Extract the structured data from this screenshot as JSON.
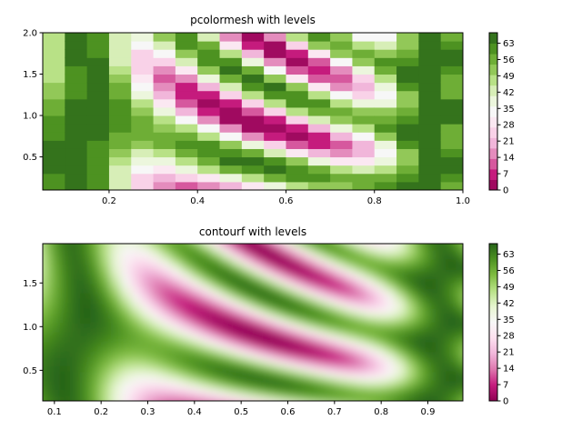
{
  "chart_data": [
    {
      "type": "heatmap",
      "title": "pcolormesh with levels",
      "xlabel": "",
      "ylabel": "",
      "xlim": [
        0.05,
        1.0
      ],
      "ylim": [
        0.1,
        2.0
      ],
      "x_ticks": [
        "0.2",
        "0.4",
        "0.6",
        "0.8",
        "1.0"
      ],
      "x_tick_values": [
        0.2,
        0.4,
        0.6,
        0.8,
        1.0
      ],
      "y_ticks": [
        "0.5",
        "1.0",
        "1.5",
        "2.0"
      ],
      "y_tick_values": [
        0.5,
        1.0,
        1.5,
        2.0
      ],
      "grid": false,
      "colormap": "PiYG",
      "colorbar": {
        "ticks": [
          "0",
          "7",
          "14",
          "21",
          "28",
          "35",
          "42",
          "49",
          "56",
          "63"
        ],
        "tick_values": [
          0,
          7,
          14,
          21,
          28,
          35,
          42,
          49,
          56,
          63
        ],
        "range": [
          0,
          67.5
        ],
        "levels": [
          0,
          4.5,
          9,
          13.5,
          18,
          22.5,
          27,
          31.5,
          36,
          40.5,
          45,
          49.5,
          54,
          58.5,
          63,
          67.5
        ]
      },
      "x_edges": [
        0.05,
        0.1,
        0.15,
        0.2,
        0.25,
        0.3,
        0.35,
        0.4,
        0.45,
        0.5,
        0.55,
        0.6,
        0.65,
        0.7,
        0.75,
        0.8,
        0.85,
        0.9,
        0.95,
        1.0
      ],
      "y_edges": [
        0.1,
        0.2,
        0.3,
        0.4,
        0.5,
        0.6,
        0.7,
        0.8,
        0.9,
        1.0,
        1.1,
        1.2,
        1.3,
        1.4,
        1.5,
        1.6,
        1.7,
        1.8,
        1.9,
        2.0
      ]
    },
    {
      "type": "heatmap",
      "title": "contourf with levels",
      "xlabel": "",
      "ylabel": "",
      "xlim": [
        0.075,
        0.975
      ],
      "ylim": [
        0.15,
        1.95
      ],
      "x_ticks": [
        "0.1",
        "0.2",
        "0.3",
        "0.4",
        "0.5",
        "0.6",
        "0.7",
        "0.8",
        "0.9"
      ],
      "x_tick_values": [
        0.1,
        0.2,
        0.3,
        0.4,
        0.5,
        0.6,
        0.7,
        0.8,
        0.9
      ],
      "y_ticks": [
        "0.5",
        "1.0",
        "1.5"
      ],
      "y_tick_values": [
        0.5,
        1.0,
        1.5
      ],
      "grid": false,
      "colormap": "PiYG",
      "colorbar": {
        "ticks": [
          "0",
          "7",
          "14",
          "21",
          "28",
          "35",
          "42",
          "49",
          "56",
          "63"
        ],
        "tick_values": [
          0,
          7,
          14,
          21,
          28,
          35,
          42,
          49,
          56,
          63
        ],
        "range": [
          0,
          67.5
        ]
      }
    }
  ]
}
